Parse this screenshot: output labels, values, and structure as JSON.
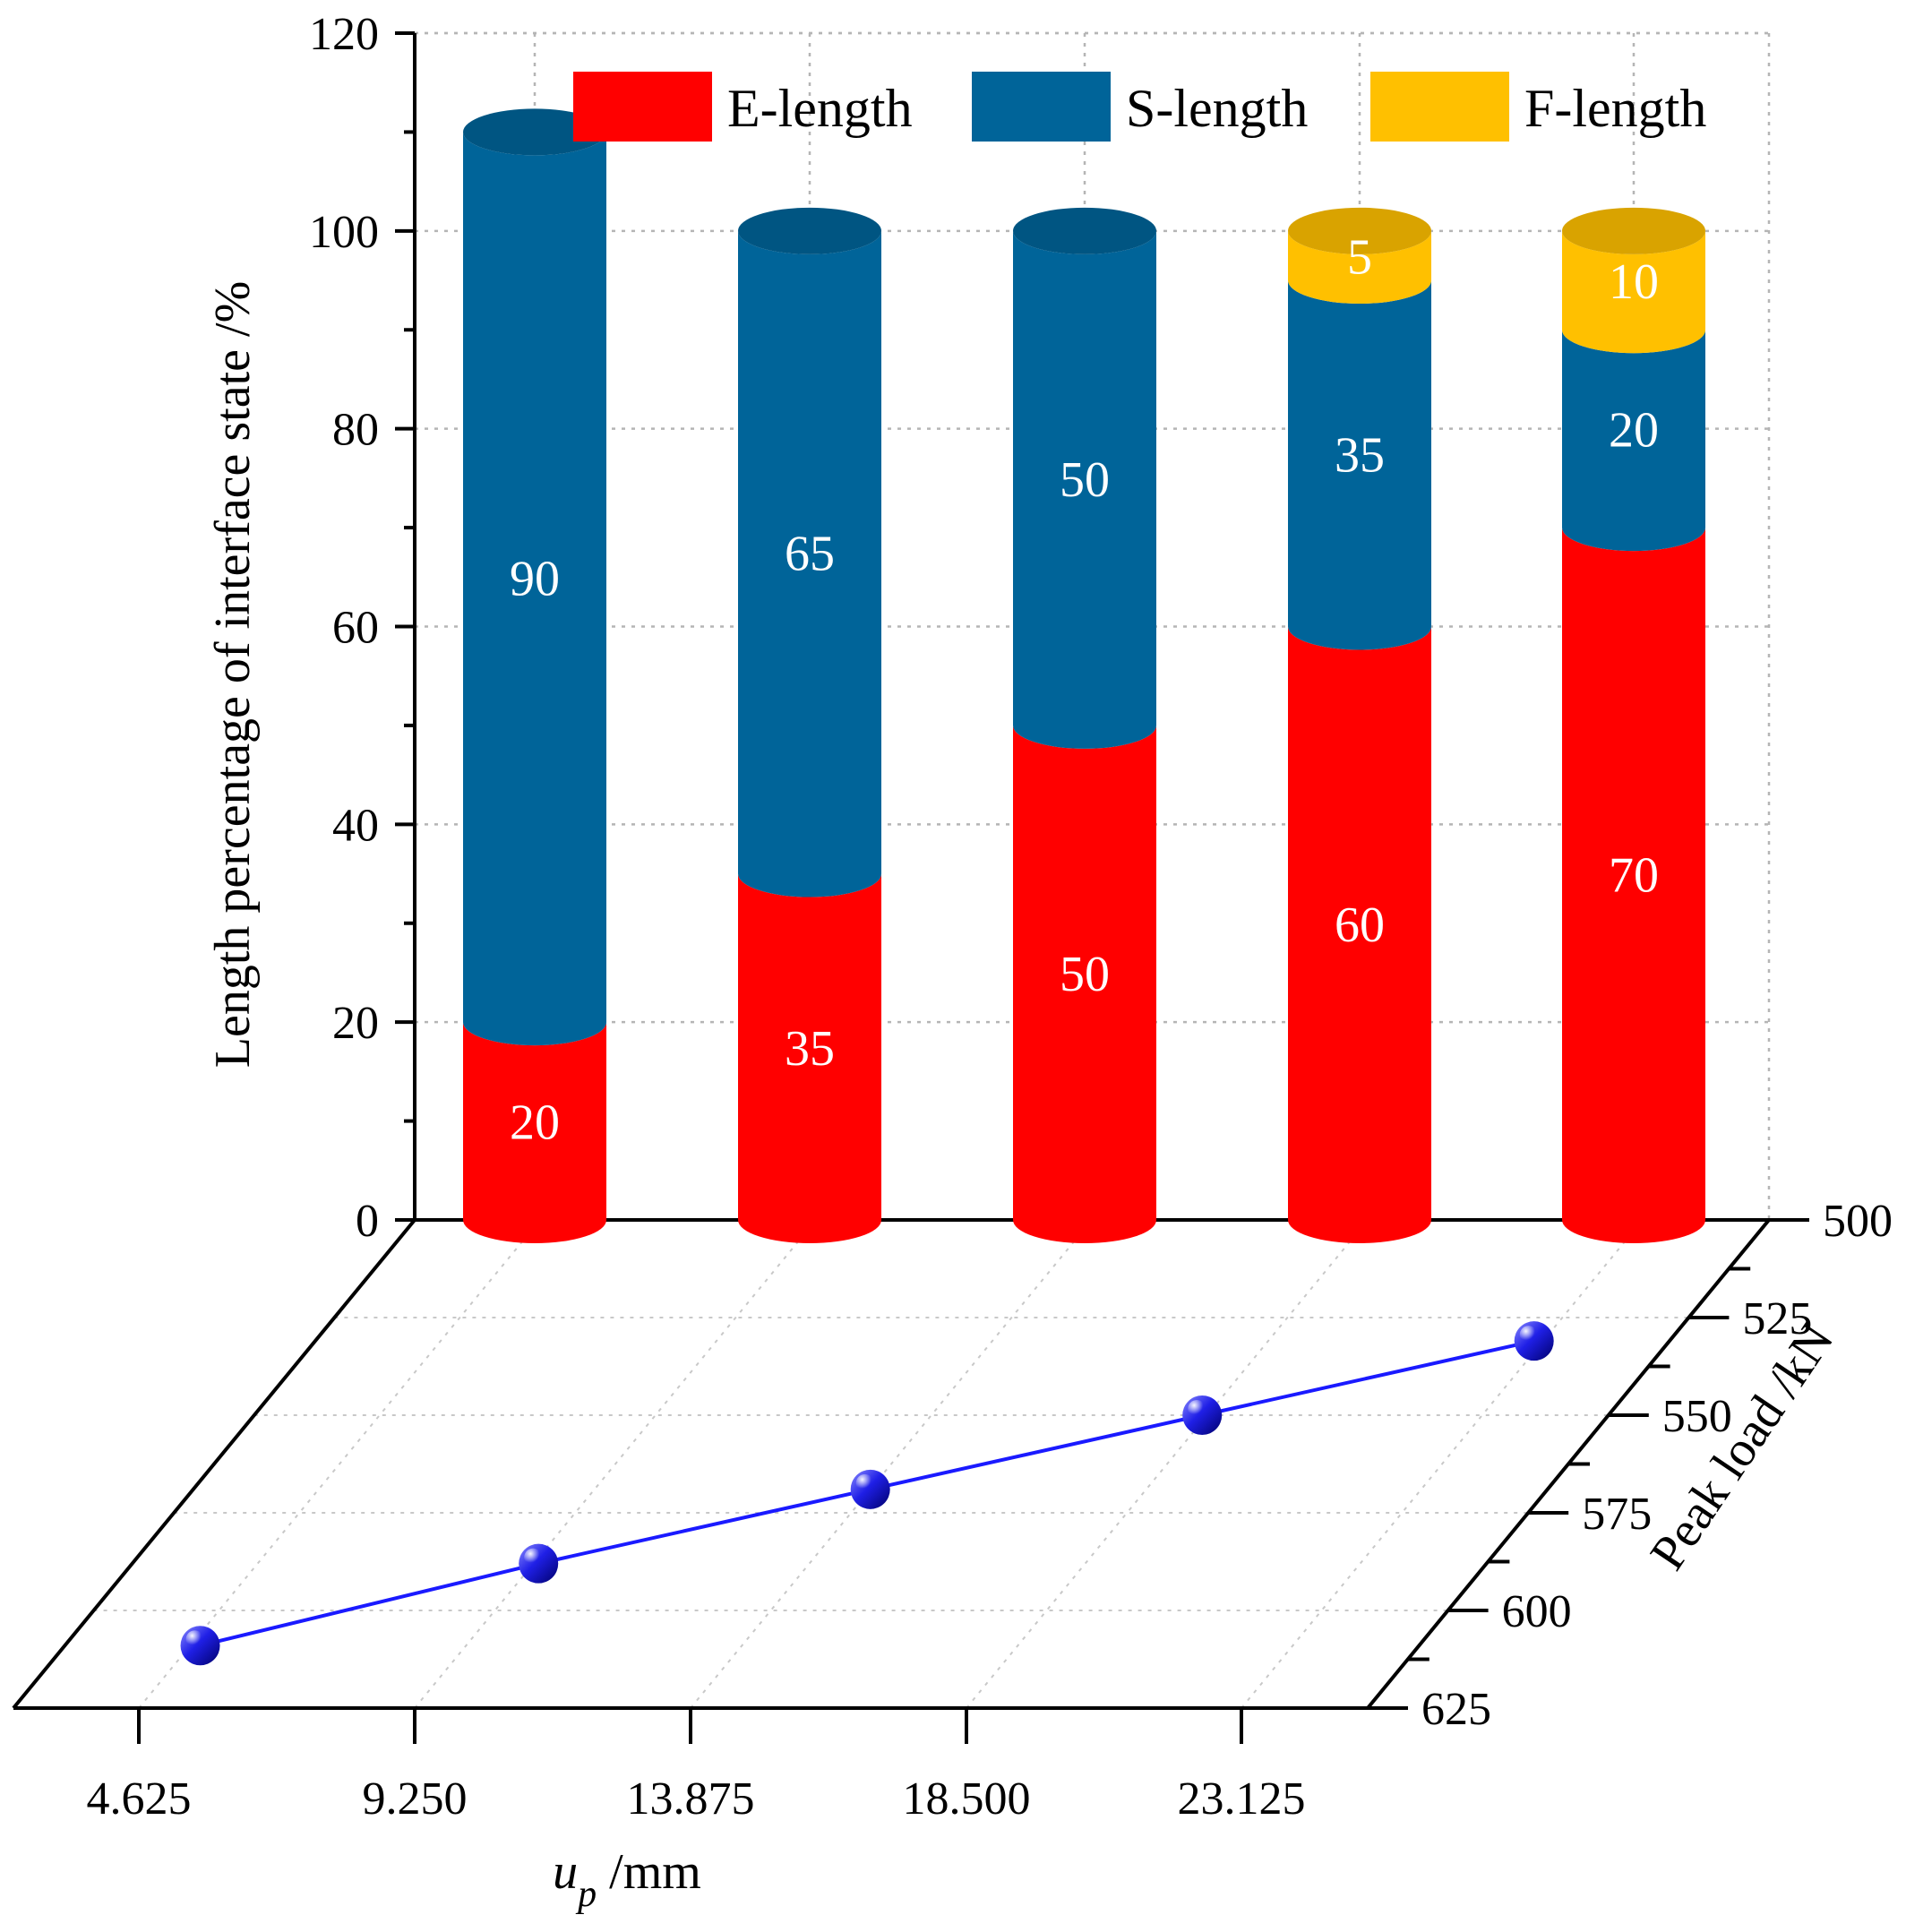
{
  "chart_data": {
    "type": "bar",
    "subtype": "3d-stacked-cylinder-with-floor-line",
    "categories": [
      "4.625",
      "9.250",
      "13.875",
      "18.500",
      "23.125"
    ],
    "series": [
      {
        "name": "E-length",
        "color": "#ff0000",
        "values": [
          20,
          35,
          50,
          60,
          70
        ]
      },
      {
        "name": "S-length",
        "color": "#006499",
        "values": [
          90,
          65,
          50,
          35,
          20
        ]
      },
      {
        "name": "F-length",
        "color": "#ffc000",
        "values": [
          0,
          0,
          0,
          5,
          10
        ]
      }
    ],
    "ylabel": "Length percentage of interface state /%",
    "ylim": [
      0,
      120
    ],
    "yticks": [
      "0",
      "20",
      "40",
      "60",
      "80",
      "100",
      "120"
    ],
    "xlabel_main": "u",
    "xlabel_sub": "p",
    "xlabel_unit": " /mm",
    "zlabel": "Peak load /kN",
    "zticks": [
      "500",
      "525",
      "550",
      "575",
      "600",
      "625"
    ],
    "line_series": {
      "name": "Peak load",
      "color": "#1a1aff",
      "x": [
        4.625,
        9.25,
        13.875,
        18.5,
        23.125
      ],
      "values": [
        609,
        588,
        569,
        550,
        531
      ]
    },
    "legend_position": "top"
  }
}
